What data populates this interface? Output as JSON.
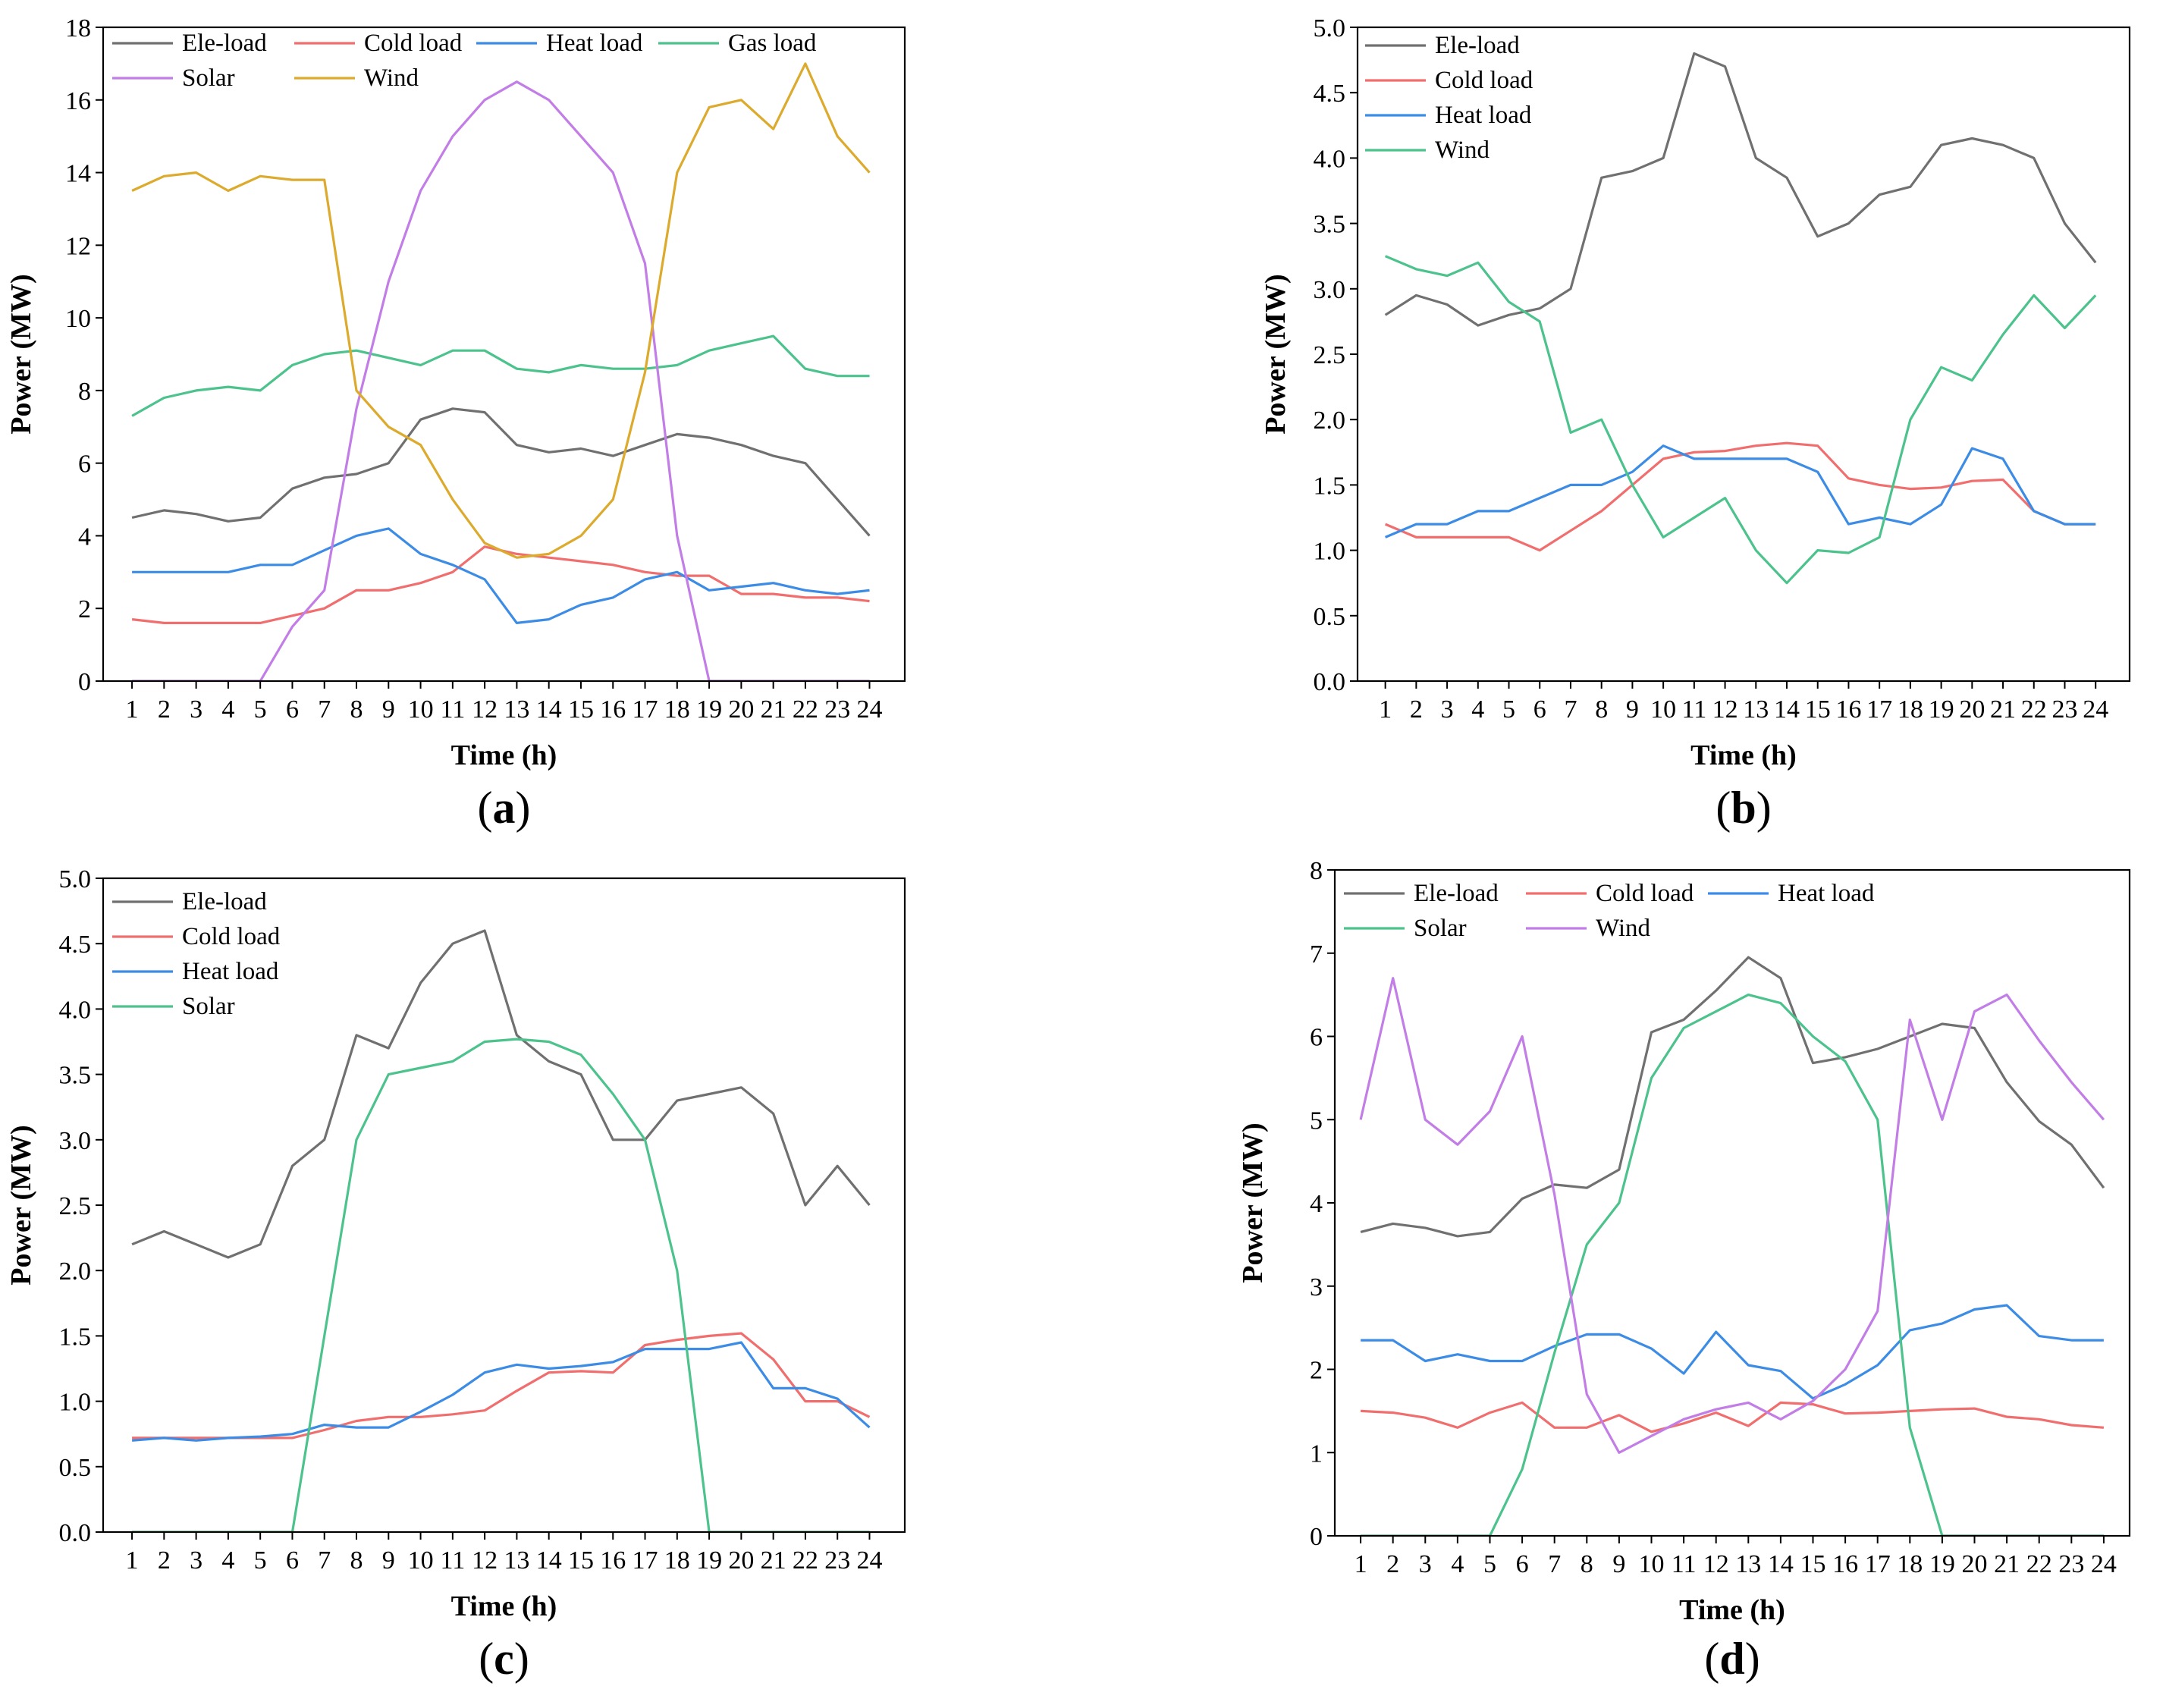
{
  "chart_data": [
    {
      "type": "line",
      "panel_label": "a",
      "xlabel": "Time (h)",
      "ylabel": "Power (MW)",
      "x": [
        1,
        2,
        3,
        4,
        5,
        6,
        7,
        8,
        9,
        10,
        11,
        12,
        13,
        14,
        15,
        16,
        17,
        18,
        19,
        20,
        21,
        22,
        23,
        24
      ],
      "xlim": [
        0.1,
        25.1
      ],
      "ylim": [
        0,
        18
      ],
      "yticks": [
        0,
        2,
        4,
        6,
        8,
        10,
        12,
        14,
        16,
        18
      ],
      "ytick_decimals": 0,
      "legend_columns": 4,
      "series": [
        {
          "name": "Ele-load",
          "color": "#707070",
          "values": [
            4.5,
            4.7,
            4.6,
            4.4,
            4.5,
            5.3,
            5.6,
            5.7,
            6.0,
            7.2,
            7.5,
            7.4,
            6.5,
            6.3,
            6.4,
            6.2,
            6.5,
            6.8,
            6.7,
            6.5,
            6.2,
            6.0,
            5.0,
            4.0
          ]
        },
        {
          "name": "Cold load",
          "color": "#f06e6e",
          "values": [
            1.7,
            1.6,
            1.6,
            1.6,
            1.6,
            1.8,
            2.0,
            2.5,
            2.5,
            2.7,
            3.0,
            3.7,
            3.5,
            3.4,
            3.3,
            3.2,
            3.0,
            2.9,
            2.9,
            2.4,
            2.4,
            2.3,
            2.3,
            2.2
          ]
        },
        {
          "name": "Heat load",
          "color": "#3c8ce6",
          "values": [
            3.0,
            3.0,
            3.0,
            3.0,
            3.2,
            3.2,
            3.6,
            4.0,
            4.2,
            3.5,
            3.2,
            2.8,
            1.6,
            1.7,
            2.1,
            2.3,
            2.8,
            3.0,
            2.5,
            2.6,
            2.7,
            2.5,
            2.4,
            2.5
          ]
        },
        {
          "name": "Gas load",
          "color": "#4cc28c",
          "values": [
            7.3,
            7.8,
            8.0,
            8.1,
            8.0,
            8.7,
            9.0,
            9.1,
            8.9,
            8.7,
            9.1,
            9.1,
            8.6,
            8.5,
            8.7,
            8.6,
            8.6,
            8.7,
            9.1,
            9.3,
            9.5,
            8.6,
            8.4,
            8.4
          ]
        },
        {
          "name": "Solar",
          "color": "#c27ee6",
          "values": [
            0,
            0,
            0,
            0,
            0,
            1.5,
            2.5,
            7.5,
            11.0,
            13.5,
            15.0,
            16.0,
            16.5,
            16.0,
            15.0,
            14.0,
            11.5,
            4.0,
            0,
            0,
            0,
            0,
            0,
            0
          ]
        },
        {
          "name": "Wind",
          "color": "#dcaa2c",
          "values": [
            13.5,
            13.9,
            14.0,
            13.5,
            13.9,
            13.8,
            13.8,
            8.0,
            7.0,
            6.5,
            5.0,
            3.8,
            3.4,
            3.5,
            4.0,
            5.0,
            8.5,
            14.0,
            15.8,
            16.0,
            15.2,
            17.0,
            15.0,
            14.0
          ]
        }
      ]
    },
    {
      "type": "line",
      "panel_label": "b",
      "xlabel": "Time (h)",
      "ylabel": "Power (MW)",
      "x": [
        1,
        2,
        3,
        4,
        5,
        6,
        7,
        8,
        9,
        10,
        11,
        12,
        13,
        14,
        15,
        16,
        17,
        18,
        19,
        20,
        21,
        22,
        23,
        24
      ],
      "xlim": [
        0.1,
        25.1
      ],
      "ylim": [
        0,
        5.0
      ],
      "yticks": [
        0.0,
        0.5,
        1.0,
        1.5,
        2.0,
        2.5,
        3.0,
        3.5,
        4.0,
        4.5,
        5.0
      ],
      "ytick_decimals": 1,
      "legend_columns": 1,
      "series": [
        {
          "name": "Ele-load",
          "color": "#707070",
          "values": [
            2.8,
            2.95,
            2.88,
            2.72,
            2.8,
            2.85,
            3.0,
            3.85,
            3.9,
            4.0,
            4.8,
            4.7,
            4.0,
            3.85,
            3.4,
            3.5,
            3.72,
            3.78,
            4.1,
            4.15,
            4.1,
            4.0,
            3.5,
            3.2
          ]
        },
        {
          "name": "Cold load",
          "color": "#f06e6e",
          "values": [
            1.2,
            1.1,
            1.1,
            1.1,
            1.1,
            1.0,
            1.15,
            1.3,
            1.5,
            1.7,
            1.75,
            1.76,
            1.8,
            1.82,
            1.8,
            1.55,
            1.5,
            1.47,
            1.48,
            1.53,
            1.54,
            1.3,
            1.2,
            1.2
          ]
        },
        {
          "name": "Heat load",
          "color": "#3c8ce6",
          "values": [
            1.1,
            1.2,
            1.2,
            1.3,
            1.3,
            1.4,
            1.5,
            1.5,
            1.6,
            1.8,
            1.7,
            1.7,
            1.7,
            1.7,
            1.6,
            1.2,
            1.25,
            1.2,
            1.35,
            1.78,
            1.7,
            1.3,
            1.2,
            1.2
          ]
        },
        {
          "name": "Wind",
          "color": "#4cc28c",
          "values": [
            3.25,
            3.15,
            3.1,
            3.2,
            2.9,
            2.75,
            1.9,
            2.0,
            1.5,
            1.1,
            1.25,
            1.4,
            1.0,
            0.75,
            1.0,
            0.98,
            1.1,
            2.0,
            2.4,
            2.3,
            2.65,
            2.95,
            2.7,
            2.95
          ]
        }
      ]
    },
    {
      "type": "line",
      "panel_label": "c",
      "xlabel": "Time (h)",
      "ylabel": "Power (MW)",
      "x": [
        1,
        2,
        3,
        4,
        5,
        6,
        7,
        8,
        9,
        10,
        11,
        12,
        13,
        14,
        15,
        16,
        17,
        18,
        19,
        20,
        21,
        22,
        23,
        24
      ],
      "xlim": [
        0.1,
        25.1
      ],
      "ylim": [
        0,
        5.0
      ],
      "yticks": [
        0.0,
        0.5,
        1.0,
        1.5,
        2.0,
        2.5,
        3.0,
        3.5,
        4.0,
        4.5,
        5.0
      ],
      "ytick_decimals": 1,
      "legend_columns": 1,
      "series": [
        {
          "name": "Ele-load",
          "color": "#707070",
          "values": [
            2.2,
            2.3,
            2.2,
            2.1,
            2.2,
            2.8,
            3.0,
            3.8,
            3.7,
            4.2,
            4.5,
            4.6,
            3.8,
            3.6,
            3.5,
            3.0,
            3.0,
            3.3,
            3.35,
            3.4,
            3.2,
            2.5,
            2.8,
            2.5
          ]
        },
        {
          "name": "Cold load",
          "color": "#f06e6e",
          "values": [
            0.72,
            0.72,
            0.72,
            0.72,
            0.72,
            0.72,
            0.78,
            0.85,
            0.88,
            0.88,
            0.9,
            0.93,
            1.08,
            1.22,
            1.23,
            1.22,
            1.43,
            1.47,
            1.5,
            1.52,
            1.32,
            1.0,
            1.0,
            0.88
          ]
        },
        {
          "name": "Heat load",
          "color": "#3c8ce6",
          "values": [
            0.7,
            0.72,
            0.7,
            0.72,
            0.73,
            0.75,
            0.82,
            0.8,
            0.8,
            0.92,
            1.05,
            1.22,
            1.28,
            1.25,
            1.27,
            1.3,
            1.4,
            1.4,
            1.4,
            1.45,
            1.1,
            1.1,
            1.02,
            0.8
          ]
        },
        {
          "name": "Solar",
          "color": "#4cc28c",
          "values": [
            0,
            0,
            0,
            0,
            0,
            0,
            1.5,
            3.0,
            3.5,
            3.55,
            3.6,
            3.75,
            3.77,
            3.75,
            3.65,
            3.35,
            3.0,
            2.0,
            0,
            0,
            0,
            0,
            0,
            0
          ]
        }
      ]
    },
    {
      "type": "line",
      "panel_label": "d",
      "xlabel": "Time (h)",
      "ylabel": "Power (MW)",
      "x": [
        1,
        2,
        3,
        4,
        5,
        6,
        7,
        8,
        9,
        10,
        11,
        12,
        13,
        14,
        15,
        16,
        17,
        18,
        19,
        20,
        21,
        22,
        23,
        24
      ],
      "xlim": [
        0.2,
        24.8
      ],
      "ylim": [
        0,
        8
      ],
      "yticks": [
        0,
        1,
        2,
        3,
        4,
        5,
        6,
        7,
        8
      ],
      "ytick_decimals": 0,
      "legend_columns": 3,
      "series": [
        {
          "name": "Ele-load",
          "color": "#707070",
          "values": [
            3.65,
            3.75,
            3.7,
            3.6,
            3.65,
            4.05,
            4.22,
            4.18,
            4.4,
            6.05,
            6.2,
            6.55,
            6.95,
            6.7,
            5.68,
            5.75,
            5.85,
            6.0,
            6.15,
            6.1,
            5.45,
            4.98,
            4.7,
            4.18
          ]
        },
        {
          "name": "Cold load",
          "color": "#f06e6e",
          "values": [
            1.5,
            1.48,
            1.42,
            1.3,
            1.48,
            1.6,
            1.3,
            1.3,
            1.45,
            1.25,
            1.35,
            1.48,
            1.32,
            1.6,
            1.58,
            1.47,
            1.48,
            1.5,
            1.52,
            1.53,
            1.43,
            1.4,
            1.33,
            1.3
          ]
        },
        {
          "name": "Heat load",
          "color": "#3c8ce6",
          "values": [
            2.35,
            2.35,
            2.1,
            2.18,
            2.1,
            2.1,
            2.28,
            2.42,
            2.42,
            2.25,
            1.95,
            2.45,
            2.05,
            1.98,
            1.65,
            1.82,
            2.05,
            2.47,
            2.55,
            2.72,
            2.77,
            2.4,
            2.35,
            2.35
          ]
        },
        {
          "name": "Solar",
          "color": "#4cc28c",
          "values": [
            0,
            0,
            0,
            0,
            0,
            0.8,
            2.2,
            3.5,
            4.0,
            5.5,
            6.1,
            6.3,
            6.5,
            6.4,
            6.0,
            5.7,
            5.0,
            1.3,
            0,
            0,
            0,
            0,
            0,
            0
          ]
        },
        {
          "name": "Wind",
          "color": "#c27ee6",
          "values": [
            5.0,
            6.7,
            5.0,
            4.7,
            5.1,
            6.0,
            4.1,
            1.7,
            1.0,
            1.2,
            1.4,
            1.52,
            1.6,
            1.4,
            1.62,
            2.0,
            2.7,
            6.2,
            5.0,
            6.3,
            6.5,
            5.95,
            5.45,
            5.0
          ]
        }
      ]
    }
  ]
}
